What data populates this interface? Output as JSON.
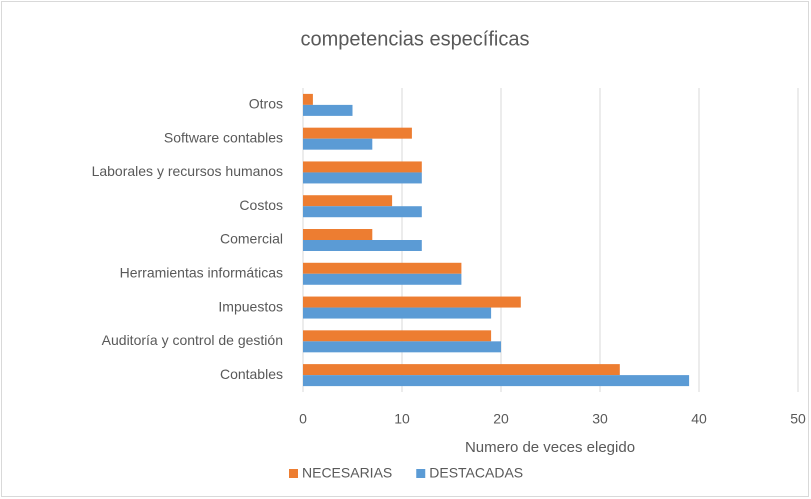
{
  "chart_data": {
    "type": "barh",
    "title": "competencias específicas",
    "categories": [
      "Contables",
      "Auditoría y control de gestión",
      "Impuestos",
      "Herramientas informáticas",
      "Comercial",
      "Costos",
      "Laborales y recursos humanos",
      "Software contables",
      "Otros"
    ],
    "series": [
      {
        "name": "NECESARIAS",
        "color": "#ed7d31",
        "values": [
          32,
          19,
          22,
          16,
          7,
          9,
          12,
          11,
          1
        ]
      },
      {
        "name": "DESTACADAS",
        "color": "#5b9bd5",
        "values": [
          39,
          20,
          19,
          16,
          12,
          12,
          12,
          7,
          5
        ]
      }
    ],
    "xlabel": "Numero de veces elegido",
    "xlim": [
      0,
      50
    ],
    "xticks": [
      0,
      10,
      20,
      30,
      40,
      50
    ],
    "grid": true,
    "legend": "bottom"
  }
}
